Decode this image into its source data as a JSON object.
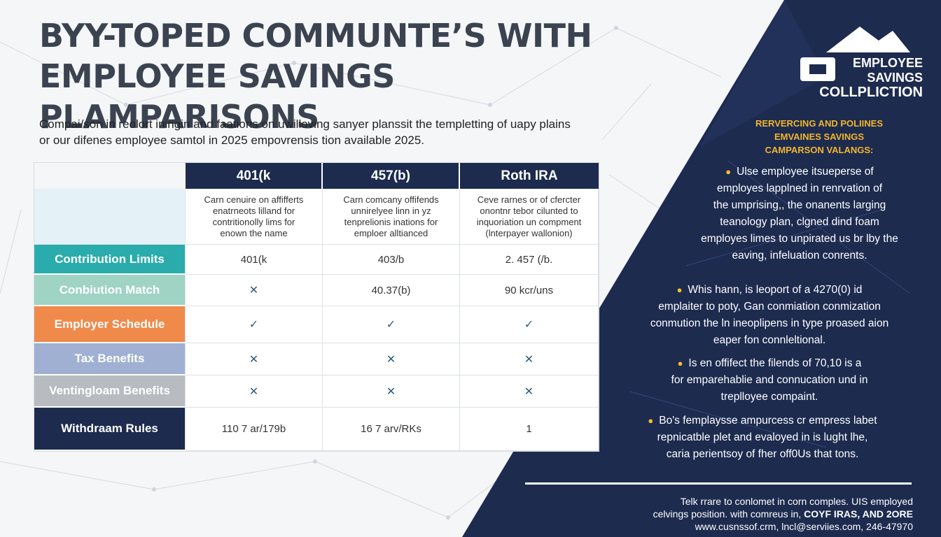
{
  "title": {
    "line1": "BYY-TOPED COMMUNTE’S WITH",
    "line2": "EMPLOYEE SAVINGS PLAMPARISONS"
  },
  "intro": {
    "line1": "Compai/son in reolort iningin and faations on uwilloving sanyer planssit the templetting of uapy plains",
    "line2": "or our difenes employee samtol in 2025 empovrensis tion available 2025."
  },
  "table": {
    "columns": [
      "401(k",
      "457(b)",
      "Roth IRA"
    ],
    "descriptions": [
      [
        "Carn cenuire on affifferts",
        "enatrneots lilland for",
        "contritionolly lims for",
        "enown the name"
      ],
      [
        "Carn comcany offifends",
        "unnirelyee linn in yz",
        "tenprelionis inations for",
        "emploer alltianced"
      ],
      [
        "Ceve rarnes or of cfercter",
        "onontnr tebor cilunted to",
        "inquoriation un compment",
        "(lnterpayer wallonion)"
      ]
    ],
    "rows": [
      {
        "label": "Contribution Limits",
        "values": [
          "401(k",
          "403/b",
          "2. 457 (/b."
        ],
        "color": "#2aacac"
      },
      {
        "label": "Conbiution Match",
        "values": [
          "✕",
          "40.37(b)",
          "90 kcr/uns"
        ],
        "color": "#9fd3c3"
      },
      {
        "label": "Employer Schedule",
        "values": [
          "✓",
          "✓",
          "✓"
        ],
        "color": "#f08a4b"
      },
      {
        "label": "Tax Benefits",
        "values": [
          "✕",
          "✕",
          "✕"
        ],
        "color": "#9fb0d3"
      },
      {
        "label": "Ventingloam Benefits",
        "values": [
          "✕",
          "✕",
          "✕"
        ],
        "color": "#b8bcc0"
      },
      {
        "label": "Withdraam Rules",
        "values": [
          "110 7 ar/179b",
          "16 7 arv/RKs",
          "1"
        ],
        "color": "#1d2b4f"
      }
    ]
  },
  "logo": {
    "icon": "mountain-logo-icon",
    "line1": "EMPLOYEE",
    "line2": "SAVINGS",
    "line3": "COLLPLICTION"
  },
  "panel": {
    "heading": [
      "RERVERCING AND POLIINES",
      "EMVAINES SAVINGS",
      "CAMPARSON VALANGS:"
    ],
    "bullets": [
      [
        "Ulse employee itsueperse of",
        "employes lapplned in renrvation of",
        "the umprising,, the onanents larging",
        "teanology plan, clgned dind foam",
        "employes limes to unpirated us br lby the",
        "eaving, infeluation conrents."
      ],
      [
        "Whis hann, is leoport of a 4270(0) id",
        "emplaiter to poty, Gan conmiation conmization",
        "conmution the ln ineoplipens in type proased aion",
        "eaper fon connleltional."
      ],
      [
        "Is en offifect the filends of 70,10 is a",
        "for emparehablie and connucation und in",
        "treplloyee compaint."
      ],
      [
        "Bo's femplaysse ampurcess cr empress labet",
        "repnicatble plet and evaloyed in is lught lhe,",
        "caria perientsoy of fher off0Us that tons."
      ]
    ]
  },
  "footer": {
    "line1": "Telk rrare to conlomet in corn comples. UIS employed",
    "line2a": "celvings position. with comreus in, ",
    "line2b": "COYF IRAS, AND 2ORE",
    "line3": "www.cusnssof.crm, lncl@serviies.com, 246-47970"
  }
}
